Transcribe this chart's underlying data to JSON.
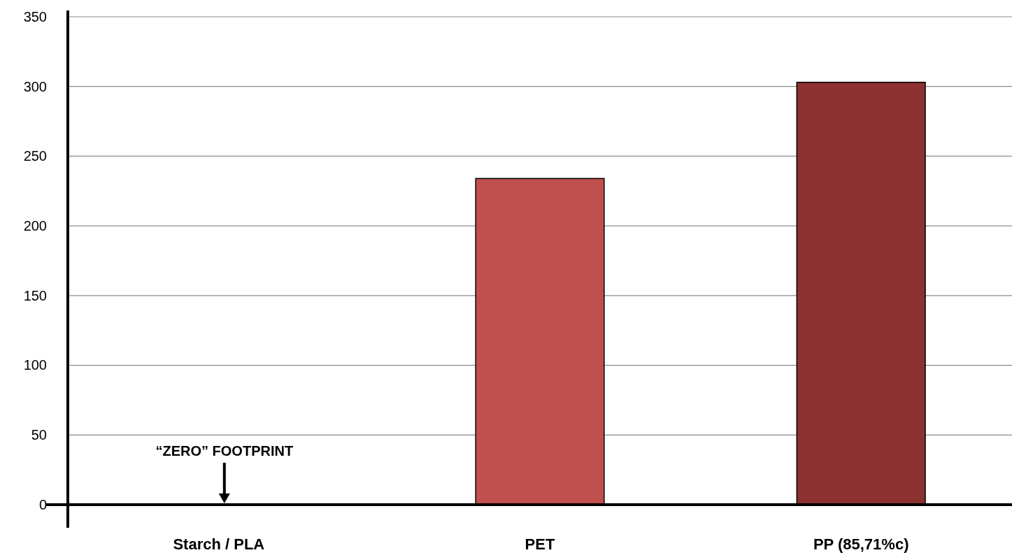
{
  "chart_data": {
    "type": "bar",
    "categories": [
      "Starch / PLA",
      "PET",
      "PP (85,71%c)"
    ],
    "values": [
      0,
      234,
      303
    ],
    "colors": [
      "#c0504d",
      "#c0504d",
      "#8b3230"
    ],
    "ylim": [
      0,
      350
    ],
    "yticks": [
      0,
      50,
      100,
      150,
      200,
      250,
      300,
      350
    ],
    "grid": "y",
    "annotations": [
      "“ZERO” FOOTPRINT"
    ]
  }
}
